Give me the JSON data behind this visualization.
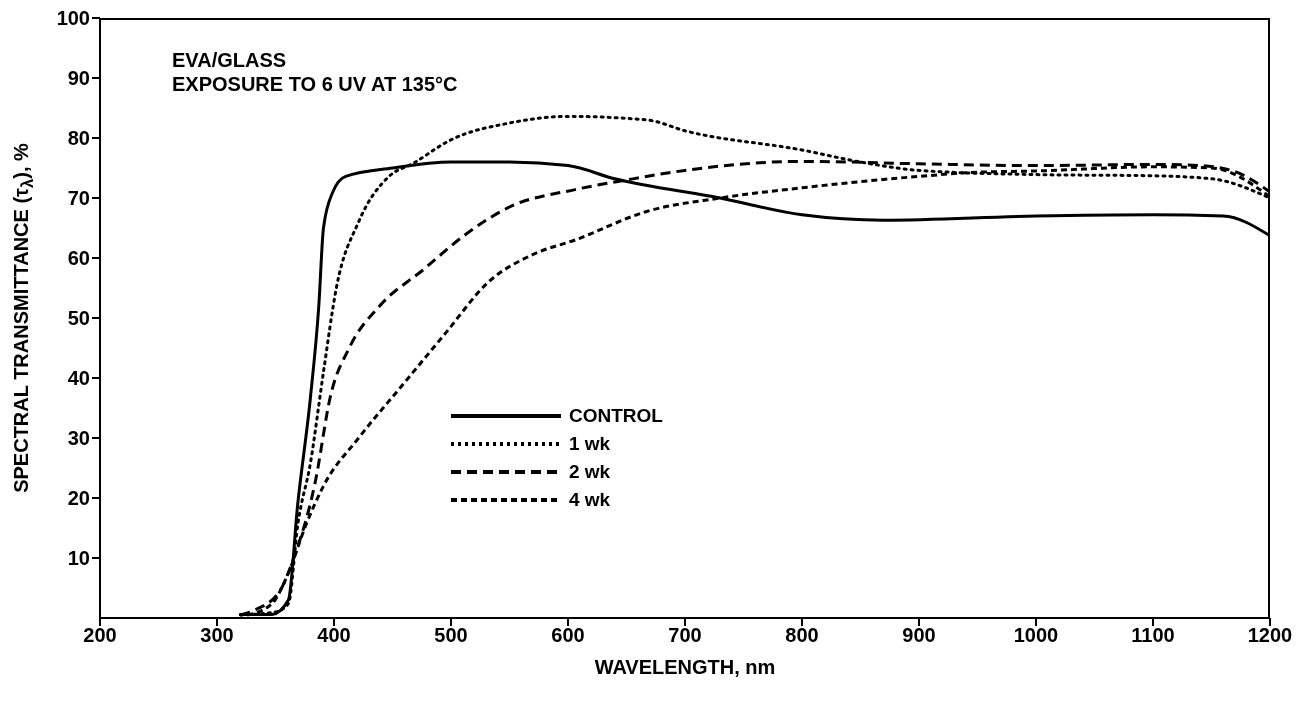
{
  "chart_data": {
    "type": "line",
    "title": "EVA/GLASS",
    "subtitle": "EXPOSURE TO 6 UV AT 135°C",
    "xlabel": "WAVELENGTH, nm",
    "ylabel": "SPECTRAL TRANSMITTANCE (τ$_{λ}$), %",
    "xlim": [
      200,
      1200
    ],
    "xticks": [
      200,
      300,
      400,
      500,
      600,
      700,
      800,
      900,
      1000,
      1100,
      1200
    ],
    "ylim": [
      0,
      100
    ],
    "yticks": [
      10,
      20,
      30,
      40,
      50,
      60,
      70,
      80,
      90,
      100
    ],
    "grid": false,
    "legend": "bottom left",
    "marker": "none",
    "series": [
      {
        "name": "CONTROL",
        "color": "#000000",
        "line_style": "solid",
        "x": [
          319,
          347,
          361,
          369,
          380,
          387,
          391,
          399,
          410,
          450,
          500,
          550,
          600,
          640,
          730,
          800,
          870,
          1000,
          1100,
          1160,
          1200
        ],
        "values": [
          0.6,
          0.6,
          3,
          19,
          37,
          52,
          65,
          71,
          73.6,
          75,
          76,
          76,
          75.4,
          73.2,
          70,
          67.2,
          66.3,
          67,
          67.2,
          67,
          63.7
        ]
      },
      {
        "name": "1 wk",
        "color": "#000000",
        "line_style": "dotted",
        "x": [
          320,
          350,
          361,
          369,
          380,
          391,
          402,
          421,
          447,
          467,
          500,
          550,
          600,
          668,
          700,
          800,
          850,
          900,
          1000,
          1100,
          1150,
          1200
        ],
        "values": [
          0.5,
          1,
          2.4,
          15.5,
          26,
          41,
          55,
          66,
          73.6,
          75.7,
          79.7,
          82.5,
          83.6,
          83,
          81.2,
          78,
          76,
          74.6,
          73.9,
          73.7,
          73.2,
          70
        ]
      },
      {
        "name": "2 wk",
        "color": "#000000",
        "line_style": "dashed",
        "x": [
          320,
          332,
          354,
          365,
          384,
          397,
          413,
          439,
          476,
          513,
          550,
          606,
          650,
          700,
          800,
          900,
          1000,
          1100,
          1140,
          1170,
          1200
        ],
        "values": [
          0.5,
          1.3,
          4.6,
          9.7,
          22.7,
          37,
          45,
          52,
          58,
          64,
          68.5,
          71.4,
          73,
          74.6,
          76.1,
          75.7,
          75.4,
          75.6,
          75.4,
          74.4,
          71
        ]
      },
      {
        "name": "4 wk",
        "color": "#000000",
        "line_style": "dashed",
        "x": [
          326,
          347,
          361,
          376,
          391,
          421,
          458,
          495,
          532,
          569,
          606,
          668,
          730,
          800,
          900,
          950,
          1000,
          1100,
          1150,
          1200
        ],
        "values": [
          0.5,
          2.4,
          7.5,
          15.5,
          22,
          30,
          38.7,
          47.4,
          56,
          60.5,
          63,
          67.8,
          70,
          71.7,
          73.6,
          74.3,
          74.5,
          75.2,
          75,
          70.2
        ]
      }
    ]
  }
}
